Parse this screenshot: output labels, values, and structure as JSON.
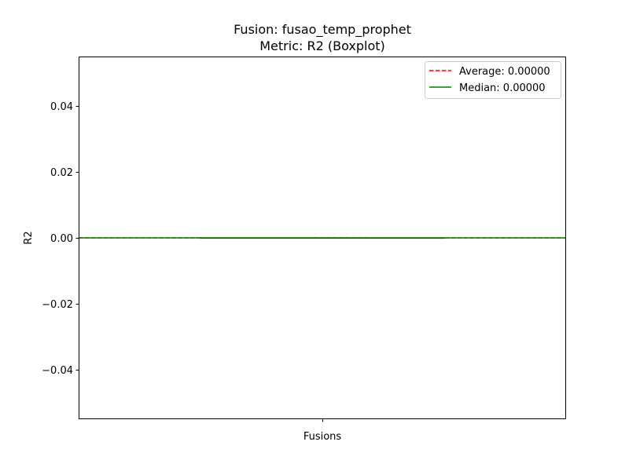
{
  "chart_data": {
    "type": "boxplot",
    "title": "Fusion: fusao_temp_prophet",
    "subtitle": "Metric: R2 (Boxplot)",
    "xlabel": "Fusions",
    "ylabel": "R2",
    "ylim": [
      -0.055,
      0.055
    ],
    "y_ticks": [
      {
        "value": 0.04,
        "label": "0.04"
      },
      {
        "value": 0.02,
        "label": "0.02"
      },
      {
        "value": 0.0,
        "label": "0.00"
      },
      {
        "value": -0.02,
        "label": "−0.02"
      },
      {
        "value": -0.04,
        "label": "−0.04"
      }
    ],
    "x_ticks": [
      1
    ],
    "box": {
      "position": 1,
      "q1": 0.0,
      "median": 0.0,
      "q3": 0.0,
      "whisker_low": 0.0,
      "whisker_high": 0.0
    },
    "series": [
      {
        "name": "Average: 0.00000",
        "value": 0.0,
        "color": "#ff0000",
        "style": "dashed"
      },
      {
        "name": "Median: 0.00000",
        "value": 0.0,
        "color": "#008000",
        "style": "solid"
      }
    ],
    "legend_position": "top-right",
    "grid": false,
    "colors": {
      "average": "#ff0000",
      "median": "#008000",
      "box_median": "#ff7f0e",
      "box": "#000000"
    }
  }
}
